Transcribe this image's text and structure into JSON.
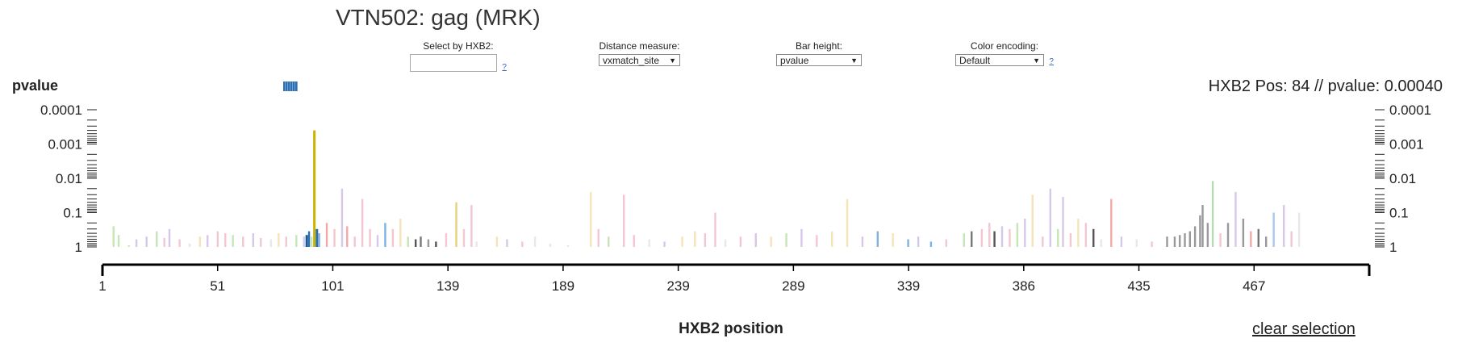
{
  "title": "VTN502: gag (MRK)",
  "controls": {
    "select_label": "Select by HXB2:",
    "select_value": "",
    "help": "?",
    "distance_label": "Distance measure:",
    "distance_value": "vxmatch_site",
    "bar_height_label": "Bar height:",
    "bar_height_value": "pvalue",
    "color_label": "Color encoding:",
    "color_value": "Default"
  },
  "ylabel": "pvalue",
  "hover_text": "HXB2 Pos: 84 // pvalue: 0.00040",
  "clear_label": "clear selection",
  "chart_data": {
    "type": "bar",
    "title": "VTN502: gag (MRK)",
    "xlabel": "HXB2 position",
    "ylabel": "pvalue",
    "y_scale": "log",
    "y_ticks": [
      "0.0001",
      "0.001",
      "0.01",
      "0.1",
      "1"
    ],
    "x_ticks": [
      "1",
      "51",
      "101",
      "139",
      "189",
      "239",
      "289",
      "339",
      "386",
      "435",
      "467"
    ],
    "selected": {
      "position": "84",
      "pvalue": 0.0004,
      "color": "#c8b400"
    },
    "series_bars": [
      {
        "i": 5,
        "p": 0.25,
        "c": "#c7e6b5"
      },
      {
        "i": 7,
        "p": 0.45,
        "c": "#c7e6b5"
      },
      {
        "i": 11,
        "p": 0.9,
        "c": "#c7e6b5"
      },
      {
        "i": 14,
        "p": 0.6,
        "c": "#d6c8ea"
      },
      {
        "i": 18,
        "p": 0.5,
        "c": "#d6c8ea"
      },
      {
        "i": 22,
        "p": 0.35,
        "c": "#c7e6b5"
      },
      {
        "i": 25,
        "p": 0.55,
        "c": "#f4c6d1"
      },
      {
        "i": 27,
        "p": 0.3,
        "c": "#d6c8ea"
      },
      {
        "i": 31,
        "p": 0.6,
        "c": "#f4c6d1"
      },
      {
        "i": 35,
        "p": 0.8,
        "c": "#e8e8e8"
      },
      {
        "i": 39,
        "p": 0.5,
        "c": "#f7e3b8"
      },
      {
        "i": 42,
        "p": 0.45,
        "c": "#d6c8ea"
      },
      {
        "i": 46,
        "p": 0.35,
        "c": "#f4c6d1"
      },
      {
        "i": 49,
        "p": 0.4,
        "c": "#f4c6d1"
      },
      {
        "i": 52,
        "p": 0.45,
        "c": "#c7e6b5"
      },
      {
        "i": 56,
        "p": 0.5,
        "c": "#f4c6d1"
      },
      {
        "i": 60,
        "p": 0.4,
        "c": "#d6c8ea"
      },
      {
        "i": 63,
        "p": 0.55,
        "c": "#f4c6d1"
      },
      {
        "i": 67,
        "p": 0.6,
        "c": "#e8e8e8"
      },
      {
        "i": 70,
        "p": 0.4,
        "c": "#f7e3b8"
      },
      {
        "i": 73,
        "p": 0.5,
        "c": "#f4c6d1"
      },
      {
        "i": 77,
        "p": 0.45,
        "c": "#c7e6b5"
      },
      {
        "i": 80,
        "p": 0.5,
        "c": "#d6c8ea"
      },
      {
        "i": 82,
        "p": 0.35,
        "c": "#2f6fb0"
      },
      {
        "i": 83,
        "p": 0.5,
        "c": "#c7e6b5"
      },
      {
        "i": 86,
        "p": 0.4,
        "c": "#7fb2e0"
      },
      {
        "i": 89,
        "p": 0.2,
        "c": "#f4a9a8"
      },
      {
        "i": 92,
        "p": 0.3,
        "c": "#f4c6d1"
      },
      {
        "i": 95,
        "p": 0.02,
        "c": "#d6c8ea"
      },
      {
        "i": 97,
        "p": 0.25,
        "c": "#f4a9a8"
      },
      {
        "i": 100,
        "p": 0.5,
        "c": "#f4c6d1"
      },
      {
        "i": 103,
        "p": 0.04,
        "c": "#f4c6d1"
      },
      {
        "i": 106,
        "p": 0.3,
        "c": "#f4c6d1"
      },
      {
        "i": 109,
        "p": 0.45,
        "c": "#d6c8ea"
      },
      {
        "i": 112,
        "p": 0.2,
        "c": "#7fb2e0"
      },
      {
        "i": 115,
        "p": 0.3,
        "c": "#f4c6d1"
      },
      {
        "i": 118,
        "p": 0.15,
        "c": "#f7e3b8"
      },
      {
        "i": 121,
        "p": 0.5,
        "c": "#c7e6b5"
      },
      {
        "i": 124,
        "p": 0.6,
        "c": "#555555"
      },
      {
        "i": 126,
        "p": 0.5,
        "c": "#777777"
      },
      {
        "i": 129,
        "p": 0.6,
        "c": "#999999"
      },
      {
        "i": 132,
        "p": 0.7,
        "c": "#555555"
      },
      {
        "i": 136,
        "p": 0.4,
        "c": "#f4c6d1"
      },
      {
        "i": 140,
        "p": 0.05,
        "c": "#e6d27a"
      },
      {
        "i": 143,
        "p": 0.3,
        "c": "#f4c6d1"
      },
      {
        "i": 146,
        "p": 0.06,
        "c": "#f4c6d1"
      },
      {
        "i": 148,
        "p": 0.7,
        "c": "#e8e8e8"
      },
      {
        "i": 156,
        "p": 0.5,
        "c": "#f7e3b8"
      },
      {
        "i": 160,
        "p": 0.6,
        "c": "#d6c8ea"
      },
      {
        "i": 166,
        "p": 0.7,
        "c": "#f4c6d1"
      },
      {
        "i": 171,
        "p": 0.5,
        "c": "#e8e8e8"
      },
      {
        "i": 177,
        "p": 0.8,
        "c": "#e8e8e8"
      },
      {
        "i": 184,
        "p": 0.9,
        "c": "#f7e3b8"
      },
      {
        "i": 193,
        "p": 0.025,
        "c": "#f7e3b8"
      },
      {
        "i": 196,
        "p": 0.3,
        "c": "#f4c6d1"
      },
      {
        "i": 200,
        "p": 0.5,
        "c": "#c7e6b5"
      },
      {
        "i": 206,
        "p": 0.03,
        "c": "#f4c6d1"
      },
      {
        "i": 210,
        "p": 0.45,
        "c": "#f4c6d1"
      },
      {
        "i": 216,
        "p": 0.6,
        "c": "#e8e8e8"
      },
      {
        "i": 222,
        "p": 0.7,
        "c": "#d6c8ea"
      },
      {
        "i": 229,
        "p": 0.5,
        "c": "#f7e3b8"
      },
      {
        "i": 234,
        "p": 0.35,
        "c": "#f7e3b8"
      },
      {
        "i": 238,
        "p": 0.4,
        "c": "#f4c6d1"
      },
      {
        "i": 242,
        "p": 0.1,
        "c": "#f4c6d1"
      },
      {
        "i": 246,
        "p": 0.6,
        "c": "#e8e8e8"
      },
      {
        "i": 252,
        "p": 0.5,
        "c": "#f4c6d1"
      },
      {
        "i": 258,
        "p": 0.4,
        "c": "#d6c8ea"
      },
      {
        "i": 264,
        "p": 0.5,
        "c": "#f7e3b8"
      },
      {
        "i": 270,
        "p": 0.4,
        "c": "#c7e6b5"
      },
      {
        "i": 276,
        "p": 0.3,
        "c": "#d6c8ea"
      },
      {
        "i": 282,
        "p": 0.45,
        "c": "#f4c6d1"
      },
      {
        "i": 288,
        "p": 0.35,
        "c": "#f7e3b8"
      },
      {
        "i": 294,
        "p": 0.04,
        "c": "#f7e3b8"
      },
      {
        "i": 300,
        "p": 0.5,
        "c": "#d6c8ea"
      },
      {
        "i": 306,
        "p": 0.35,
        "c": "#7fb2e0"
      },
      {
        "i": 312,
        "p": 0.4,
        "c": "#f7e3b8"
      },
      {
        "i": 318,
        "p": 0.6,
        "c": "#7fb2e0"
      },
      {
        "i": 322,
        "p": 0.5,
        "c": "#d6c8ea"
      },
      {
        "i": 327,
        "p": 0.7,
        "c": "#7fb2e0"
      },
      {
        "i": 333,
        "p": 0.6,
        "c": "#f4c6d1"
      },
      {
        "i": 340,
        "p": 0.4,
        "c": "#c7e6b5"
      },
      {
        "i": 343,
        "p": 0.35,
        "c": "#777777"
      },
      {
        "i": 347,
        "p": 0.3,
        "c": "#f4c6d1"
      },
      {
        "i": 350,
        "p": 0.2,
        "c": "#f4c6d1"
      },
      {
        "i": 352,
        "p": 0.35,
        "c": "#555555"
      },
      {
        "i": 355,
        "p": 0.25,
        "c": "#d6c8ea"
      },
      {
        "i": 358,
        "p": 0.3,
        "c": "#f4c6d1"
      },
      {
        "i": 361,
        "p": 0.2,
        "c": "#c7e6b5"
      },
      {
        "i": 364,
        "p": 0.15,
        "c": "#d6c8ea"
      },
      {
        "i": 367,
        "p": 0.03,
        "c": "#f7e3b8"
      },
      {
        "i": 371,
        "p": 0.5,
        "c": "#f4c6d1"
      },
      {
        "i": 374,
        "p": 0.02,
        "c": "#d6c8ea"
      },
      {
        "i": 377,
        "p": 0.3,
        "c": "#c7e6b5"
      },
      {
        "i": 379,
        "p": 0.035,
        "c": "#d6c8ea"
      },
      {
        "i": 382,
        "p": 0.4,
        "c": "#f4c6d1"
      },
      {
        "i": 385,
        "p": 0.15,
        "c": "#f7e3b8"
      },
      {
        "i": 388,
        "p": 0.2,
        "c": "#f4c6d1"
      },
      {
        "i": 391,
        "p": 0.3,
        "c": "#555555"
      },
      {
        "i": 394,
        "p": 0.6,
        "c": "#e8e8e8"
      },
      {
        "i": 398,
        "p": 0.04,
        "c": "#f4a9a8"
      },
      {
        "i": 402,
        "p": 0.5,
        "c": "#d6c8ea"
      },
      {
        "i": 408,
        "p": 0.6,
        "c": "#e8e8e8"
      },
      {
        "i": 414,
        "p": 0.7,
        "c": "#f4c6d1"
      },
      {
        "i": 420,
        "p": 0.5,
        "c": "#999999"
      },
      {
        "i": 423,
        "p": 0.5,
        "c": "#999999"
      },
      {
        "i": 425,
        "p": 0.45,
        "c": "#999999"
      },
      {
        "i": 427,
        "p": 0.4,
        "c": "#999999"
      },
      {
        "i": 429,
        "p": 0.35,
        "c": "#999999"
      },
      {
        "i": 431,
        "p": 0.25,
        "c": "#999999"
      },
      {
        "i": 433,
        "p": 0.12,
        "c": "#999999"
      },
      {
        "i": 434,
        "p": 0.06,
        "c": "#999999"
      },
      {
        "i": 436,
        "p": 0.2,
        "c": "#999999"
      },
      {
        "i": 438,
        "p": 0.012,
        "c": "#b5deb0"
      },
      {
        "i": 441,
        "p": 0.4,
        "c": "#f4c6d1"
      },
      {
        "i": 444,
        "p": 0.2,
        "c": "#999999"
      },
      {
        "i": 447,
        "p": 0.025,
        "c": "#d6c8ea"
      },
      {
        "i": 450,
        "p": 0.15,
        "c": "#999999"
      },
      {
        "i": 453,
        "p": 0.35,
        "c": "#f4a9a8"
      },
      {
        "i": 456,
        "p": 0.3,
        "c": "#777777"
      },
      {
        "i": 459,
        "p": 0.5,
        "c": "#999999"
      },
      {
        "i": 462,
        "p": 0.1,
        "c": "#a9c8e8"
      },
      {
        "i": 466,
        "p": 0.06,
        "c": "#d6c8ea"
      },
      {
        "i": 469,
        "p": 0.35,
        "c": "#f4c6d1"
      },
      {
        "i": 472,
        "p": 0.1,
        "c": "#e8e8e8"
      }
    ],
    "selected_bars": [
      {
        "i": 81,
        "p": 0.45,
        "c": "#1a5a9a"
      },
      {
        "i": 84,
        "p": 0.0004,
        "c": "#c8b400"
      },
      {
        "i": 85,
        "p": 0.3,
        "c": "#2f6fb0"
      }
    ]
  }
}
